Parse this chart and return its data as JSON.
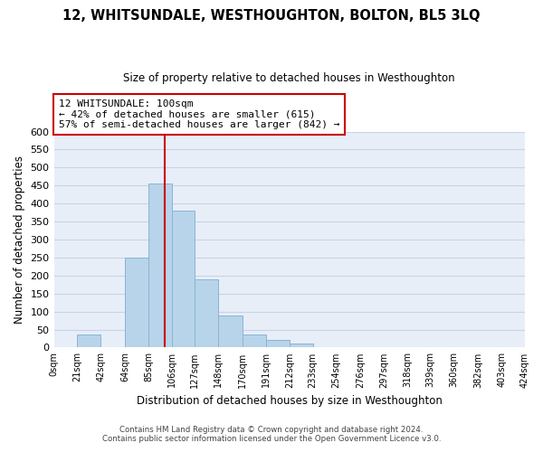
{
  "title": "12, WHITSUNDALE, WESTHOUGHTON, BOLTON, BL5 3LQ",
  "subtitle": "Size of property relative to detached houses in Westhoughton",
  "xlabel": "Distribution of detached houses by size in Westhoughton",
  "ylabel": "Number of detached properties",
  "bin_edges": [
    0,
    21,
    42,
    64,
    85,
    106,
    127,
    148,
    170,
    191,
    212,
    233,
    254,
    276,
    297,
    318,
    339,
    360,
    382,
    403,
    424
  ],
  "bin_counts": [
    0,
    35,
    0,
    250,
    455,
    380,
    190,
    90,
    35,
    20,
    10,
    0,
    0,
    0,
    0,
    0,
    0,
    0,
    0,
    0
  ],
  "bar_color": "#b8d4ea",
  "bar_edge_color": "#8ab4d4",
  "vline_x": 100,
  "vline_color": "#cc0000",
  "ylim": [
    0,
    600
  ],
  "yticks": [
    0,
    50,
    100,
    150,
    200,
    250,
    300,
    350,
    400,
    450,
    500,
    550,
    600
  ],
  "annotation_title": "12 WHITSUNDALE: 100sqm",
  "annotation_line1": "← 42% of detached houses are smaller (615)",
  "annotation_line2": "57% of semi-detached houses are larger (842) →",
  "annotation_box_color": "#ffffff",
  "annotation_box_edge": "#cc0000",
  "grid_color": "#c8d4e4",
  "footer1": "Contains HM Land Registry data © Crown copyright and database right 2024.",
  "footer2": "Contains public sector information licensed under the Open Government Licence v3.0.",
  "tick_labels": [
    "0sqm",
    "21sqm",
    "42sqm",
    "64sqm",
    "85sqm",
    "106sqm",
    "127sqm",
    "148sqm",
    "170sqm",
    "191sqm",
    "212sqm",
    "233sqm",
    "254sqm",
    "276sqm",
    "297sqm",
    "318sqm",
    "339sqm",
    "360sqm",
    "382sqm",
    "403sqm",
    "424sqm"
  ]
}
